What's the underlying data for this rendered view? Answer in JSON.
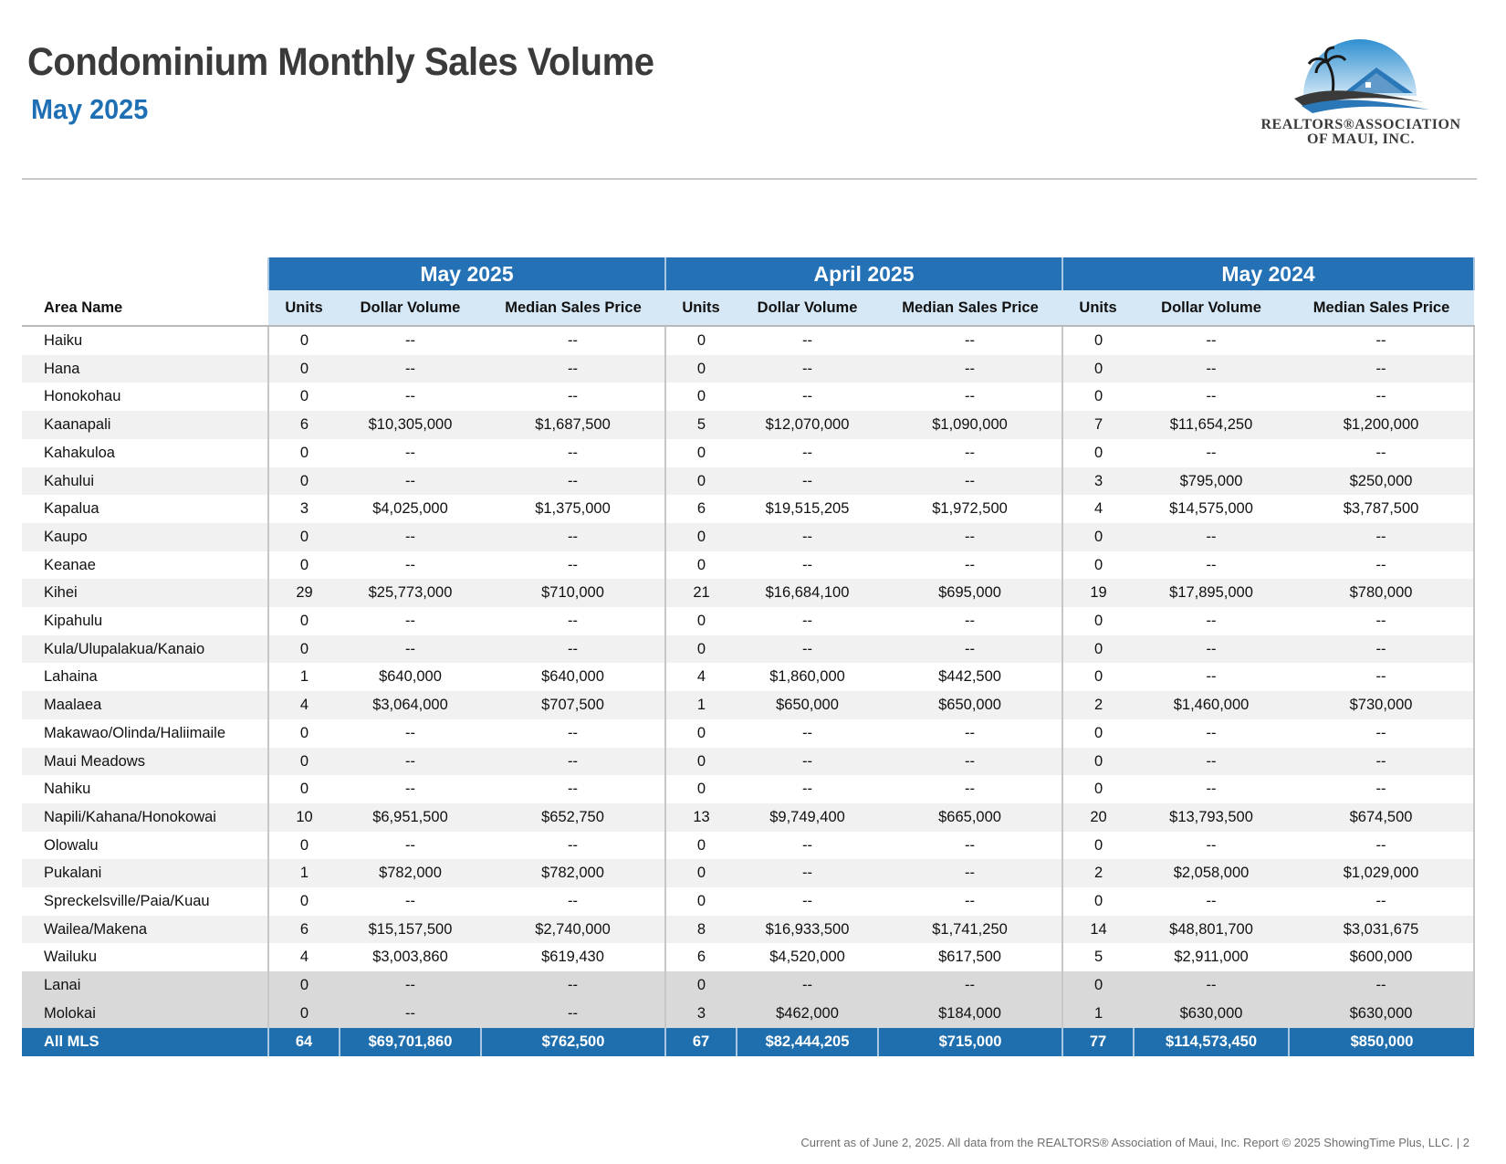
{
  "header": {
    "title": "Condominium Monthly Sales Volume",
    "subtitle": "May 2025"
  },
  "logo": {
    "line1": "REALTORS®ASSOCIATION",
    "line2": "OF MAUI, INC.",
    "colors": {
      "sky": "#2f8fd0",
      "roof": "#2b78b8",
      "wave": "#3a3a3a"
    }
  },
  "table": {
    "area_header": "Area Name",
    "groups": [
      "May 2025",
      "April 2025",
      "May 2024"
    ],
    "columns": [
      "Units",
      "Dollar Volume",
      "Median Sales Price"
    ],
    "rows": [
      {
        "area": "Haiku",
        "v": [
          "0",
          "--",
          "--",
          "0",
          "--",
          "--",
          "0",
          "--",
          "--"
        ]
      },
      {
        "area": "Hana",
        "v": [
          "0",
          "--",
          "--",
          "0",
          "--",
          "--",
          "0",
          "--",
          "--"
        ]
      },
      {
        "area": "Honokohau",
        "v": [
          "0",
          "--",
          "--",
          "0",
          "--",
          "--",
          "0",
          "--",
          "--"
        ]
      },
      {
        "area": "Kaanapali",
        "v": [
          "6",
          "$10,305,000",
          "$1,687,500",
          "5",
          "$12,070,000",
          "$1,090,000",
          "7",
          "$11,654,250",
          "$1,200,000"
        ]
      },
      {
        "area": "Kahakuloa",
        "v": [
          "0",
          "--",
          "--",
          "0",
          "--",
          "--",
          "0",
          "--",
          "--"
        ]
      },
      {
        "area": "Kahului",
        "v": [
          "0",
          "--",
          "--",
          "0",
          "--",
          "--",
          "3",
          "$795,000",
          "$250,000"
        ]
      },
      {
        "area": "Kapalua",
        "v": [
          "3",
          "$4,025,000",
          "$1,375,000",
          "6",
          "$19,515,205",
          "$1,972,500",
          "4",
          "$14,575,000",
          "$3,787,500"
        ]
      },
      {
        "area": "Kaupo",
        "v": [
          "0",
          "--",
          "--",
          "0",
          "--",
          "--",
          "0",
          "--",
          "--"
        ]
      },
      {
        "area": "Keanae",
        "v": [
          "0",
          "--",
          "--",
          "0",
          "--",
          "--",
          "0",
          "--",
          "--"
        ]
      },
      {
        "area": "Kihei",
        "v": [
          "29",
          "$25,773,000",
          "$710,000",
          "21",
          "$16,684,100",
          "$695,000",
          "19",
          "$17,895,000",
          "$780,000"
        ]
      },
      {
        "area": "Kipahulu",
        "v": [
          "0",
          "--",
          "--",
          "0",
          "--",
          "--",
          "0",
          "--",
          "--"
        ]
      },
      {
        "area": "Kula/Ulupalakua/Kanaio",
        "v": [
          "0",
          "--",
          "--",
          "0",
          "--",
          "--",
          "0",
          "--",
          "--"
        ]
      },
      {
        "area": "Lahaina",
        "v": [
          "1",
          "$640,000",
          "$640,000",
          "4",
          "$1,860,000",
          "$442,500",
          "0",
          "--",
          "--"
        ]
      },
      {
        "area": "Maalaea",
        "v": [
          "4",
          "$3,064,000",
          "$707,500",
          "1",
          "$650,000",
          "$650,000",
          "2",
          "$1,460,000",
          "$730,000"
        ]
      },
      {
        "area": "Makawao/Olinda/Haliimaile",
        "v": [
          "0",
          "--",
          "--",
          "0",
          "--",
          "--",
          "0",
          "--",
          "--"
        ]
      },
      {
        "area": "Maui Meadows",
        "v": [
          "0",
          "--",
          "--",
          "0",
          "--",
          "--",
          "0",
          "--",
          "--"
        ]
      },
      {
        "area": "Nahiku",
        "v": [
          "0",
          "--",
          "--",
          "0",
          "--",
          "--",
          "0",
          "--",
          "--"
        ]
      },
      {
        "area": "Napili/Kahana/Honokowai",
        "v": [
          "10",
          "$6,951,500",
          "$652,750",
          "13",
          "$9,749,400",
          "$665,000",
          "20",
          "$13,793,500",
          "$674,500"
        ]
      },
      {
        "area": "Olowalu",
        "v": [
          "0",
          "--",
          "--",
          "0",
          "--",
          "--",
          "0",
          "--",
          "--"
        ]
      },
      {
        "area": "Pukalani",
        "v": [
          "1",
          "$782,000",
          "$782,000",
          "0",
          "--",
          "--",
          "2",
          "$2,058,000",
          "$1,029,000"
        ]
      },
      {
        "area": "Spreckelsville/Paia/Kuau",
        "v": [
          "0",
          "--",
          "--",
          "0",
          "--",
          "--",
          "0",
          "--",
          "--"
        ]
      },
      {
        "area": "Wailea/Makena",
        "v": [
          "6",
          "$15,157,500",
          "$2,740,000",
          "8",
          "$16,933,500",
          "$1,741,250",
          "14",
          "$48,801,700",
          "$3,031,675"
        ]
      },
      {
        "area": "Wailuku",
        "v": [
          "4",
          "$3,003,860",
          "$619,430",
          "6",
          "$4,520,000",
          "$617,500",
          "5",
          "$2,911,000",
          "$600,000"
        ]
      },
      {
        "area": "Lanai",
        "v": [
          "0",
          "--",
          "--",
          "0",
          "--",
          "--",
          "0",
          "--",
          "--"
        ],
        "island": true
      },
      {
        "area": "Molokai",
        "v": [
          "0",
          "--",
          "--",
          "3",
          "$462,000",
          "$184,000",
          "1",
          "$630,000",
          "$630,000"
        ],
        "island": true
      }
    ],
    "total": {
      "area": "All MLS",
      "v": [
        "64",
        "$69,701,860",
        "$762,500",
        "67",
        "$82,444,205",
        "$715,000",
        "77",
        "$114,573,450",
        "$850,000"
      ]
    }
  },
  "footer": {
    "text": "Current as of June 2, 2025. All data from the REALTORS® Association of Maui, Inc. Report © 2025 ShowingTime Plus, LLC.  |  2"
  }
}
